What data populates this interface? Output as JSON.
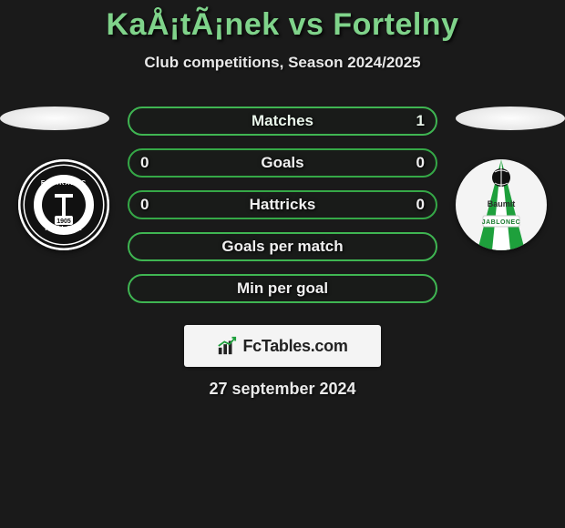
{
  "title": {
    "text": "KaÅ¡tÃ¡nek vs Fortelny",
    "color": "#7fd38a"
  },
  "subtitle": "Club competitions, Season 2024/2025",
  "bar_style": {
    "border_color": "#35a847",
    "fill_color": "rgba(20,60,20,0.05)",
    "highlight_border": "#3fb552"
  },
  "bars": [
    {
      "label": "Matches",
      "left": "",
      "right": "1"
    },
    {
      "label": "Goals",
      "left": "0",
      "right": "0"
    },
    {
      "label": "Hattricks",
      "left": "0",
      "right": "0"
    },
    {
      "label": "Goals per match",
      "left": "",
      "right": ""
    },
    {
      "label": "Min per goal",
      "left": "",
      "right": ""
    }
  ],
  "branding": "FcTables.com",
  "date": "27 september 2024",
  "crest_left": {
    "bg": "#ffffff",
    "ring": "#1a1a1a",
    "center": "#1a1a1a",
    "accent": "#cccccc",
    "year": "1905"
  },
  "crest_right": {
    "bg": "#ffffff",
    "stripe": "#1ea03c",
    "text_top": "Baumit",
    "text_bottom": "JABLONEC"
  }
}
